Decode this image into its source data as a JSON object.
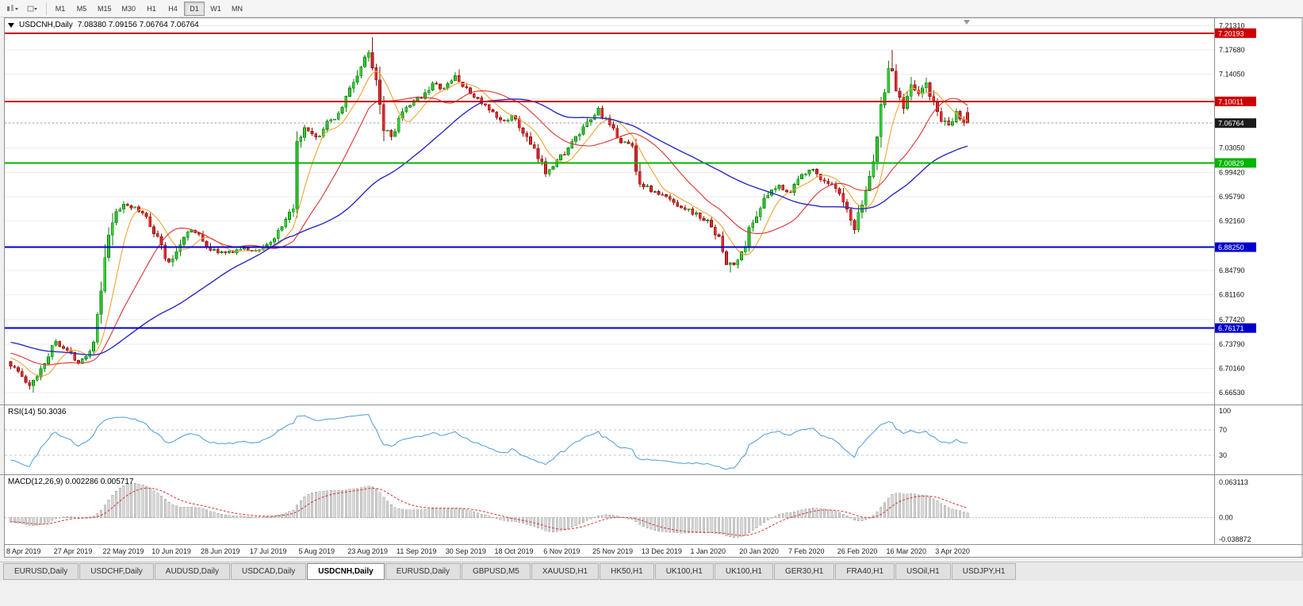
{
  "toolbar": {
    "timeframes": [
      {
        "label": "M1",
        "active": false
      },
      {
        "label": "M5",
        "active": false
      },
      {
        "label": "M15",
        "active": false
      },
      {
        "label": "M30",
        "active": false
      },
      {
        "label": "H1",
        "active": false
      },
      {
        "label": "H4",
        "active": false
      },
      {
        "label": "D1",
        "active": true
      },
      {
        "label": "W1",
        "active": false
      },
      {
        "label": "MN",
        "active": false
      }
    ]
  },
  "chart": {
    "title": "USDCNH,Daily",
    "ohlc": "7.08380 7.09156 7.06764 7.06764"
  },
  "indicators": {
    "rsi_label": "RSI(14) 50.3036",
    "macd_label": "MACD(12,26,9) 0.002286 0.005717"
  },
  "tabs": [
    {
      "label": "EURUSD,Daily",
      "active": false
    },
    {
      "label": "USDCHF,Daily",
      "active": false
    },
    {
      "label": "AUDUSD,Daily",
      "active": false
    },
    {
      "label": "USDCAD,Daily",
      "active": false
    },
    {
      "label": "USDCNH,Daily",
      "active": true
    },
    {
      "label": "EURUSD,Daily",
      "active": false
    },
    {
      "label": "GBPUSD,M5",
      "active": false
    },
    {
      "label": "XAUUSD,H1",
      "active": false
    },
    {
      "label": "HK50,H1",
      "active": false
    },
    {
      "label": "UK100,H1",
      "active": false
    },
    {
      "label": "UK100,H1",
      "active": false
    },
    {
      "label": "GER30,H1",
      "active": false
    },
    {
      "label": "FRA40,H1",
      "active": false
    },
    {
      "label": "USOil,H1",
      "active": false
    },
    {
      "label": "USDJPY,H1",
      "active": false
    }
  ],
  "chart_data": {
    "type": "candlestick",
    "symbol": "USDCNH",
    "timeframe": "Daily",
    "last_candle": {
      "open": 7.0838,
      "high": 7.09156,
      "low": 7.06764,
      "close": 7.06764
    },
    "current_price": {
      "value": 7.06764,
      "label": "7.06764",
      "tag_color": "#1a1a1a"
    },
    "bar_count": 255,
    "bars_per_label": 13,
    "x_labels": [
      "8 Apr 2019",
      "27 Apr 2019",
      "22 May 2019",
      "10 Jun 2019",
      "28 Jun 2019",
      "17 Jul 2019",
      "5 Aug 2019",
      "23 Aug 2019",
      "11 Sep 2019",
      "30 Sep 2019",
      "18 Oct 2019",
      "6 Nov 2019",
      "25 Nov 2019",
      "13 Dec 2019",
      "1 Jan 2020",
      "20 Jan 2020",
      "7 Feb 2020",
      "26 Feb 2020",
      "16 Mar 2020",
      "3 Apr 2020"
    ],
    "price_axis": {
      "max": 7.223,
      "min": 6.65,
      "ticks": [
        {
          "value": 7.2131,
          "label": "7.21310"
        },
        {
          "value": 7.1768,
          "label": "7.17680"
        },
        {
          "value": 7.1405,
          "label": "7.14050"
        },
        {
          "value": 7.0305,
          "label": "7.03050"
        },
        {
          "value": 6.9942,
          "label": "6.99420"
        },
        {
          "value": 6.9579,
          "label": "6.95790"
        },
        {
          "value": 6.9216,
          "label": "6.92160"
        },
        {
          "value": 6.8479,
          "label": "6.84790"
        },
        {
          "value": 6.8116,
          "label": "6.81160"
        },
        {
          "value": 6.7742,
          "label": "6.77420"
        },
        {
          "value": 6.7379,
          "label": "6.73790"
        },
        {
          "value": 6.7016,
          "label": "6.70160"
        },
        {
          "value": 6.6653,
          "label": "6.66530"
        }
      ],
      "grid_only": [
        7.1042,
        7.0679,
        6.8853
      ]
    },
    "levels": [
      {
        "value": 7.20193,
        "label": "7.20193",
        "color": "#cc0000"
      },
      {
        "value": 7.10011,
        "label": "7.10011",
        "color": "#cc0000"
      },
      {
        "value": 7.00829,
        "label": "7.00829",
        "color": "#00b400"
      },
      {
        "value": 6.8825,
        "label": "6.88250",
        "color": "#0000cc"
      },
      {
        "value": 6.76171,
        "label": "6.76171",
        "color": "#0000cc"
      }
    ],
    "candle_colors": {
      "up": "#30d230",
      "up_border": "#0e7d0e",
      "down": "#e32a2a",
      "down_border": "#8c0f0f"
    },
    "moving_averages": [
      {
        "period": 8,
        "color": "#f0a432"
      },
      {
        "period": 20,
        "color": "#dd3333"
      },
      {
        "period": 50,
        "color": "#2a2ac8"
      }
    ],
    "rsi": {
      "period": 14,
      "value": 50.3036,
      "line_color": "#4a9bd9",
      "axis_labels": [
        "100",
        "70",
        "30"
      ],
      "axis_values": [
        100,
        70,
        30
      ],
      "dashed_levels": [
        70,
        30
      ],
      "scale_max": 100,
      "scale_min": 0
    },
    "macd": {
      "fast": 12,
      "slow": 26,
      "signal": 9,
      "main_value": 0.002286,
      "signal_value": 0.005717,
      "axis_labels": [
        "0.063113",
        "0.00",
        "-0.038872"
      ],
      "axis_values": [
        0.063113,
        0,
        -0.038872
      ],
      "scale_max": 0.063113,
      "scale_min": -0.038872,
      "histogram_fill": "#d8d8d8",
      "histogram_border": "#9a9a9a",
      "signal_color": "#dd3333"
    },
    "waypoints": [
      [
        0,
        6.712
      ],
      [
        3,
        6.697
      ],
      [
        6,
        6.673
      ],
      [
        9,
        6.702
      ],
      [
        13,
        6.743
      ],
      [
        16,
        6.728
      ],
      [
        19,
        6.712
      ],
      [
        22,
        6.727
      ],
      [
        24,
        6.775
      ],
      [
        26,
        6.858
      ],
      [
        28,
        6.922
      ],
      [
        31,
        6.948
      ],
      [
        34,
        6.94
      ],
      [
        37,
        6.928
      ],
      [
        40,
        6.897
      ],
      [
        43,
        6.855
      ],
      [
        46,
        6.888
      ],
      [
        48,
        6.91
      ],
      [
        51,
        6.9
      ],
      [
        54,
        6.879
      ],
      [
        58,
        6.873
      ],
      [
        62,
        6.88
      ],
      [
        66,
        6.877
      ],
      [
        70,
        6.89
      ],
      [
        73,
        6.91
      ],
      [
        75,
        6.93
      ],
      [
        76,
        6.948
      ],
      [
        77,
        7.018
      ],
      [
        79,
        7.058
      ],
      [
        82,
        7.044
      ],
      [
        85,
        7.066
      ],
      [
        88,
        7.082
      ],
      [
        91,
        7.118
      ],
      [
        94,
        7.152
      ],
      [
        96,
        7.172
      ],
      [
        98,
        7.138
      ],
      [
        100,
        7.068
      ],
      [
        102,
        7.048
      ],
      [
        104,
        7.076
      ],
      [
        107,
        7.094
      ],
      [
        110,
        7.108
      ],
      [
        113,
        7.126
      ],
      [
        116,
        7.118
      ],
      [
        119,
        7.138
      ],
      [
        122,
        7.116
      ],
      [
        125,
        7.104
      ],
      [
        128,
        7.086
      ],
      [
        131,
        7.07
      ],
      [
        134,
        7.077
      ],
      [
        137,
        7.054
      ],
      [
        140,
        7.024
      ],
      [
        143,
        6.996
      ],
      [
        146,
        7.012
      ],
      [
        149,
        7.03
      ],
      [
        152,
        7.052
      ],
      [
        155,
        7.072
      ],
      [
        157,
        7.088
      ],
      [
        160,
        7.062
      ],
      [
        163,
        7.042
      ],
      [
        166,
        7.033
      ],
      [
        168,
        6.978
      ],
      [
        172,
        6.964
      ],
      [
        175,
        6.957
      ],
      [
        178,
        6.946
      ],
      [
        181,
        6.938
      ],
      [
        184,
        6.927
      ],
      [
        187,
        6.916
      ],
      [
        189,
        6.893
      ],
      [
        191,
        6.86
      ],
      [
        193,
        6.856
      ],
      [
        195,
        6.872
      ],
      [
        197,
        6.906
      ],
      [
        199,
        6.934
      ],
      [
        202,
        6.96
      ],
      [
        205,
        6.974
      ],
      [
        208,
        6.964
      ],
      [
        210,
        6.984
      ],
      [
        213,
        7.001
      ],
      [
        216,
        6.986
      ],
      [
        219,
        6.974
      ],
      [
        221,
        6.96
      ],
      [
        223,
        6.933
      ],
      [
        225,
        6.906
      ],
      [
        227,
        6.946
      ],
      [
        229,
        6.988
      ],
      [
        231,
        7.048
      ],
      [
        233,
        7.124
      ],
      [
        234,
        7.158
      ],
      [
        236,
        7.118
      ],
      [
        238,
        7.094
      ],
      [
        240,
        7.132
      ],
      [
        242,
        7.108
      ],
      [
        244,
        7.128
      ],
      [
        246,
        7.094
      ],
      [
        248,
        7.074
      ],
      [
        250,
        7.06
      ],
      [
        252,
        7.082
      ],
      [
        254,
        7.068
      ]
    ],
    "forced_extremes": {
      "6": {
        "low": 6.6653
      },
      "96": {
        "high": 7.196
      },
      "119": {
        "high": 7.148
      },
      "191": {
        "low": 6.8445
      },
      "234": {
        "high": 7.177
      }
    }
  }
}
